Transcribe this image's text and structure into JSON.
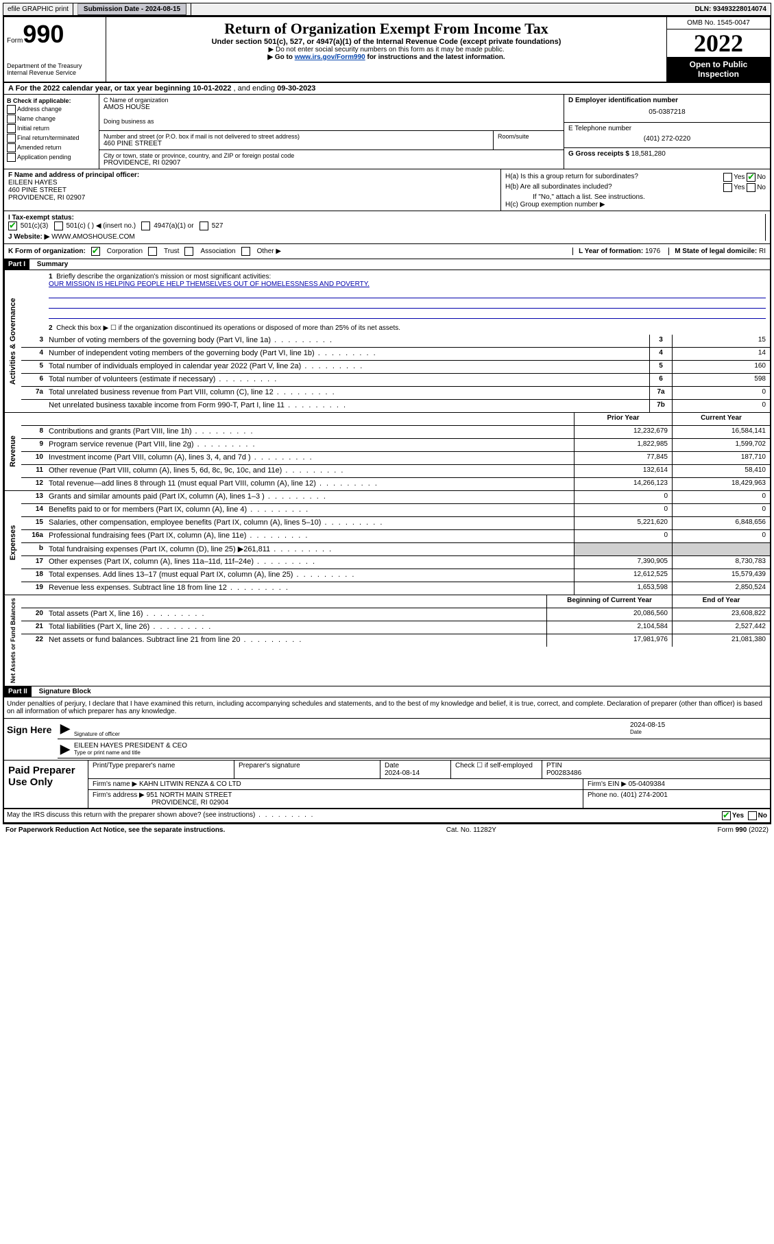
{
  "topbar": {
    "efile": "efile GRAPHIC print",
    "sub_label": "Submission Date - ",
    "sub_date": "2024-08-15",
    "dln_label": "DLN: ",
    "dln": "93493228014074"
  },
  "header": {
    "form_word": "Form",
    "form_num": "990",
    "dept": "Department of the Treasury\nInternal Revenue Service",
    "title": "Return of Organization Exempt From Income Tax",
    "subtitle": "Under section 501(c), 527, or 4947(a)(1) of the Internal Revenue Code (except private foundations)",
    "note1": "▶ Do not enter social security numbers on this form as it may be made public.",
    "note2_pre": "▶ Go to ",
    "note2_link": "www.irs.gov/Form990",
    "note2_post": " for instructions and the latest information.",
    "omb": "OMB No. 1545-0047",
    "year": "2022",
    "open": "Open to Public Inspection"
  },
  "rowA": {
    "text_pre": "A For the 2022 calendar year, or tax year beginning ",
    "begin": "10-01-2022",
    "mid": " , and ending ",
    "end": "09-30-2023"
  },
  "sectionB": {
    "title": "B Check if applicable:",
    "items": [
      "Address change",
      "Name change",
      "Initial return",
      "Final return/terminated",
      "Amended return",
      "Application pending"
    ]
  },
  "sectionC": {
    "name_lbl": "C Name of organization",
    "name": "AMOS HOUSE",
    "dba_lbl": "Doing business as",
    "addr_lbl": "Number and street (or P.O. box if mail is not delivered to street address)",
    "room_lbl": "Room/suite",
    "addr": "460 PINE STREET",
    "city_lbl": "City or town, state or province, country, and ZIP or foreign postal code",
    "city": "PROVIDENCE, RI  02907"
  },
  "sectionD": {
    "lbl": "D Employer identification number",
    "val": "05-0387218"
  },
  "sectionE": {
    "lbl": "E Telephone number",
    "val": "(401) 272-0220"
  },
  "sectionG": {
    "lbl": "G Gross receipts $ ",
    "val": "18,581,280"
  },
  "sectionF": {
    "lbl": "F Name and address of principal officer:",
    "name": "EILEEN HAYES",
    "addr1": "460 PINE STREET",
    "addr2": "PROVIDENCE, RI  02907"
  },
  "sectionH": {
    "ha": "H(a)  Is this a group return for subordinates?",
    "hb": "H(b)  Are all subordinates included?",
    "hb_note": "If \"No,\" attach a list. See instructions.",
    "hc": "H(c)  Group exemption number ▶",
    "yes": "Yes",
    "no": "No"
  },
  "sectionI": {
    "lbl": "I   Tax-exempt status:",
    "o1": "501(c)(3)",
    "o2": "501(c) (  ) ◀ (insert no.)",
    "o3": "4947(a)(1) or",
    "o4": "527"
  },
  "sectionJ": {
    "lbl": "J   Website: ▶ ",
    "val": "WWW.AMOSHOUSE.COM"
  },
  "sectionK": {
    "lbl": "K Form of organization:",
    "o1": "Corporation",
    "o2": "Trust",
    "o3": "Association",
    "o4": "Other ▶"
  },
  "sectionL": {
    "lbl": "L Year of formation: ",
    "val": "1976"
  },
  "sectionM": {
    "lbl": "M State of legal domicile: ",
    "val": "RI"
  },
  "part1": {
    "label": "Part I",
    "title": "Summary",
    "l1_lbl": "Briefly describe the organization's mission or most significant activities:",
    "l1_text": "OUR MISSION IS HELPING PEOPLE HELP THEMSELVES OUT OF HOMELESSNESS AND POVERTY.",
    "l2": "Check this box ▶ ☐  if the organization discontinued its operations or disposed of more than 25% of its net assets.",
    "rows_gov": [
      {
        "n": "3",
        "t": "Number of voting members of the governing body (Part VI, line 1a)",
        "c": "3",
        "v": "15"
      },
      {
        "n": "4",
        "t": "Number of independent voting members of the governing body (Part VI, line 1b)",
        "c": "4",
        "v": "14"
      },
      {
        "n": "5",
        "t": "Total number of individuals employed in calendar year 2022 (Part V, line 2a)",
        "c": "5",
        "v": "160"
      },
      {
        "n": "6",
        "t": "Total number of volunteers (estimate if necessary)",
        "c": "6",
        "v": "598"
      },
      {
        "n": "7a",
        "t": "Total unrelated business revenue from Part VIII, column (C), line 12",
        "c": "7a",
        "v": "0"
      },
      {
        "n": "",
        "t": "Net unrelated business taxable income from Form 990-T, Part I, line 11",
        "c": "7b",
        "v": "0"
      }
    ],
    "col_prior": "Prior Year",
    "col_current": "Current Year",
    "col_begin": "Beginning of Current Year",
    "col_end": "End of Year",
    "rows_rev": [
      {
        "n": "8",
        "t": "Contributions and grants (Part VIII, line 1h)",
        "p": "12,232,679",
        "c": "16,584,141"
      },
      {
        "n": "9",
        "t": "Program service revenue (Part VIII, line 2g)",
        "p": "1,822,985",
        "c": "1,599,702"
      },
      {
        "n": "10",
        "t": "Investment income (Part VIII, column (A), lines 3, 4, and 7d )",
        "p": "77,845",
        "c": "187,710"
      },
      {
        "n": "11",
        "t": "Other revenue (Part VIII, column (A), lines 5, 6d, 8c, 9c, 10c, and 11e)",
        "p": "132,614",
        "c": "58,410"
      },
      {
        "n": "12",
        "t": "Total revenue—add lines 8 through 11 (must equal Part VIII, column (A), line 12)",
        "p": "14,266,123",
        "c": "18,429,963"
      }
    ],
    "rows_exp": [
      {
        "n": "13",
        "t": "Grants and similar amounts paid (Part IX, column (A), lines 1–3 )",
        "p": "0",
        "c": "0"
      },
      {
        "n": "14",
        "t": "Benefits paid to or for members (Part IX, column (A), line 4)",
        "p": "0",
        "c": "0"
      },
      {
        "n": "15",
        "t": "Salaries, other compensation, employee benefits (Part IX, column (A), lines 5–10)",
        "p": "5,221,620",
        "c": "6,848,656"
      },
      {
        "n": "16a",
        "t": "Professional fundraising fees (Part IX, column (A), line 11e)",
        "p": "0",
        "c": "0"
      },
      {
        "n": "b",
        "t": "Total fundraising expenses (Part IX, column (D), line 25) ▶261,811",
        "p": "",
        "c": "",
        "gray": true
      },
      {
        "n": "17",
        "t": "Other expenses (Part IX, column (A), lines 11a–11d, 11f–24e)",
        "p": "7,390,905",
        "c": "8,730,783"
      },
      {
        "n": "18",
        "t": "Total expenses. Add lines 13–17 (must equal Part IX, column (A), line 25)",
        "p": "12,612,525",
        "c": "15,579,439"
      },
      {
        "n": "19",
        "t": "Revenue less expenses. Subtract line 18 from line 12",
        "p": "1,653,598",
        "c": "2,850,524"
      }
    ],
    "rows_net": [
      {
        "n": "20",
        "t": "Total assets (Part X, line 16)",
        "p": "20,086,560",
        "c": "23,608,822"
      },
      {
        "n": "21",
        "t": "Total liabilities (Part X, line 26)",
        "p": "2,104,584",
        "c": "2,527,442"
      },
      {
        "n": "22",
        "t": "Net assets or fund balances. Subtract line 21 from line 20",
        "p": "17,981,976",
        "c": "21,081,380"
      }
    ],
    "side_gov": "Activities & Governance",
    "side_rev": "Revenue",
    "side_exp": "Expenses",
    "side_net": "Net Assets or Fund Balances"
  },
  "part2": {
    "label": "Part II",
    "title": "Signature Block",
    "declaration": "Under penalties of perjury, I declare that I have examined this return, including accompanying schedules and statements, and to the best of my knowledge and belief, it is true, correct, and complete. Declaration of preparer (other than officer) is based on all information of which preparer has any knowledge.",
    "sign_here": "Sign Here",
    "sig_officer_lbl": "Signature of officer",
    "sig_date_lbl": "Date",
    "sig_date": "2024-08-15",
    "officer_name": "EILEEN HAYES PRESIDENT & CEO",
    "officer_name_lbl": "Type or print name and title",
    "paid_prep": "Paid Preparer Use Only",
    "prep_name_lbl": "Print/Type preparer's name",
    "prep_sig_lbl": "Preparer's signature",
    "prep_date_lbl": "Date",
    "prep_date": "2024-08-14",
    "self_emp": "Check ☐ if self-employed",
    "ptin_lbl": "PTIN",
    "ptin": "P00283486",
    "firm_name_lbl": "Firm's name    ▶ ",
    "firm_name": "KAHN LITWIN RENZA & CO LTD",
    "firm_ein_lbl": "Firm's EIN ▶ ",
    "firm_ein": "05-0409384",
    "firm_addr_lbl": "Firm's address ▶ ",
    "firm_addr1": "951 NORTH MAIN STREET",
    "firm_addr2": "PROVIDENCE, RI  02904",
    "phone_lbl": "Phone no. ",
    "phone": "(401) 274-2001",
    "discuss": "May the IRS discuss this return with the preparer shown above? (see instructions)"
  },
  "footer": {
    "left": "For Paperwork Reduction Act Notice, see the separate instructions.",
    "mid": "Cat. No. 11282Y",
    "right": "Form 990 (2022)"
  }
}
